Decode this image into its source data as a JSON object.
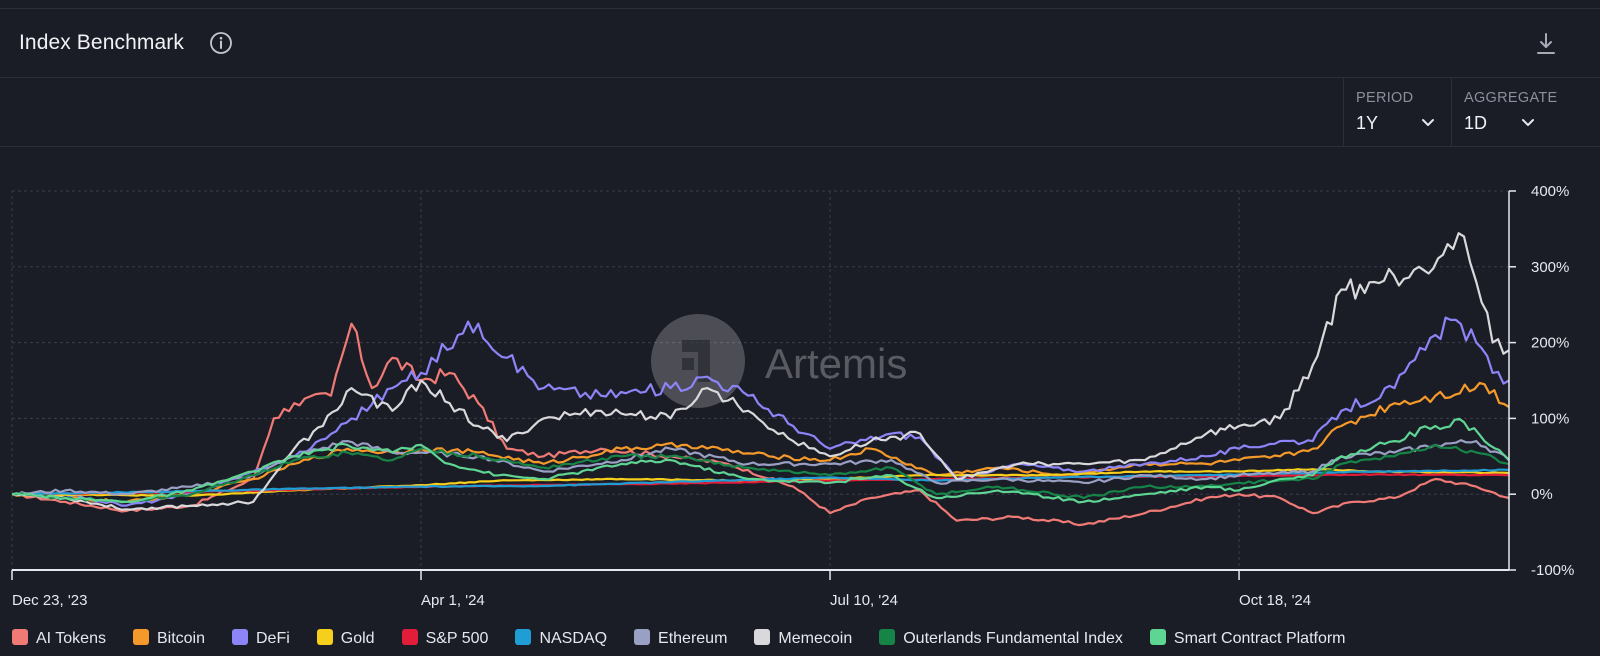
{
  "header": {
    "title": "Index Benchmark",
    "info_icon": "info-icon",
    "download_icon": "download-icon"
  },
  "controls": {
    "period": {
      "label": "PERIOD",
      "value": "1Y"
    },
    "aggregate": {
      "label": "AGGREGATE",
      "value": "1D"
    }
  },
  "watermark": {
    "text": "Artemis"
  },
  "chart_data": {
    "type": "line",
    "title": "",
    "xlabel": "",
    "ylabel": "",
    "x_range": [
      "2023-12-23",
      "2024-12-23"
    ],
    "x_ticks": [
      {
        "date": "2023-12-23",
        "label": "Dec 23, '23"
      },
      {
        "date": "2024-04-01",
        "label": "Apr 1, '24"
      },
      {
        "date": "2024-07-10",
        "label": "Jul 10, '24"
      },
      {
        "date": "2024-10-18",
        "label": "Oct 18, '24"
      }
    ],
    "ylim": [
      -100,
      400
    ],
    "y_ticks": [
      {
        "value": 400,
        "label": "400%"
      },
      {
        "value": 300,
        "label": "300%"
      },
      {
        "value": 200,
        "label": "200%"
      },
      {
        "value": 100,
        "label": "100%"
      },
      {
        "value": 0,
        "label": "0%"
      },
      {
        "value": -100,
        "label": "-100%"
      }
    ],
    "grid": true,
    "legend_position": "bottom",
    "series": [
      {
        "name": "AI Tokens",
        "color": "#f07b76",
        "points": [
          [
            "2023-12-23",
            0
          ],
          [
            "2024-01-05",
            -10
          ],
          [
            "2024-01-20",
            -22
          ],
          [
            "2024-02-05",
            -15
          ],
          [
            "2024-02-20",
            20
          ],
          [
            "2024-02-25",
            100
          ],
          [
            "2024-03-01",
            120
          ],
          [
            "2024-03-10",
            130
          ],
          [
            "2024-03-15",
            225
          ],
          [
            "2024-03-20",
            140
          ],
          [
            "2024-03-25",
            180
          ],
          [
            "2024-04-01",
            150
          ],
          [
            "2024-04-08",
            160
          ],
          [
            "2024-04-15",
            120
          ],
          [
            "2024-04-22",
            60
          ],
          [
            "2024-05-01",
            50
          ],
          [
            "2024-05-15",
            60
          ],
          [
            "2024-06-01",
            50
          ],
          [
            "2024-06-15",
            40
          ],
          [
            "2024-07-01",
            10
          ],
          [
            "2024-07-10",
            -25
          ],
          [
            "2024-07-20",
            -5
          ],
          [
            "2024-08-01",
            5
          ],
          [
            "2024-08-10",
            -35
          ],
          [
            "2024-08-25",
            -30
          ],
          [
            "2024-09-10",
            -40
          ],
          [
            "2024-09-25",
            -25
          ],
          [
            "2024-10-10",
            -5
          ],
          [
            "2024-10-18",
            0
          ],
          [
            "2024-10-28",
            -5
          ],
          [
            "2024-11-05",
            -25
          ],
          [
            "2024-11-15",
            -10
          ],
          [
            "2024-11-25",
            -5
          ],
          [
            "2024-12-05",
            20
          ],
          [
            "2024-12-15",
            10
          ],
          [
            "2024-12-23",
            -5
          ]
        ]
      },
      {
        "name": "Bitcoin",
        "color": "#f59a2a",
        "points": [
          [
            "2023-12-23",
            0
          ],
          [
            "2024-01-05",
            -5
          ],
          [
            "2024-01-20",
            -10
          ],
          [
            "2024-02-05",
            0
          ],
          [
            "2024-02-20",
            20
          ],
          [
            "2024-03-01",
            40
          ],
          [
            "2024-03-14",
            60
          ],
          [
            "2024-03-25",
            55
          ],
          [
            "2024-04-01",
            60
          ],
          [
            "2024-04-15",
            55
          ],
          [
            "2024-05-01",
            40
          ],
          [
            "2024-05-20",
            60
          ],
          [
            "2024-06-05",
            65
          ],
          [
            "2024-06-25",
            50
          ],
          [
            "2024-07-10",
            45
          ],
          [
            "2024-07-20",
            60
          ],
          [
            "2024-08-05",
            25
          ],
          [
            "2024-08-20",
            35
          ],
          [
            "2024-09-05",
            25
          ],
          [
            "2024-09-25",
            40
          ],
          [
            "2024-10-10",
            40
          ],
          [
            "2024-10-18",
            45
          ],
          [
            "2024-10-28",
            50
          ],
          [
            "2024-11-05",
            60
          ],
          [
            "2024-11-12",
            90
          ],
          [
            "2024-11-25",
            120
          ],
          [
            "2024-12-05",
            130
          ],
          [
            "2024-12-17",
            145
          ],
          [
            "2024-12-23",
            115
          ]
        ]
      },
      {
        "name": "DeFi",
        "color": "#8c84f7",
        "points": [
          [
            "2023-12-23",
            0
          ],
          [
            "2024-01-05",
            0
          ],
          [
            "2024-01-20",
            -15
          ],
          [
            "2024-02-05",
            0
          ],
          [
            "2024-02-20",
            30
          ],
          [
            "2024-03-05",
            60
          ],
          [
            "2024-03-15",
            100
          ],
          [
            "2024-03-25",
            140
          ],
          [
            "2024-04-01",
            160
          ],
          [
            "2024-04-10",
            210
          ],
          [
            "2024-04-15",
            225
          ],
          [
            "2024-04-22",
            180
          ],
          [
            "2024-05-01",
            140
          ],
          [
            "2024-05-15",
            130
          ],
          [
            "2024-06-01",
            140
          ],
          [
            "2024-06-10",
            155
          ],
          [
            "2024-06-20",
            130
          ],
          [
            "2024-07-01",
            90
          ],
          [
            "2024-07-10",
            60
          ],
          [
            "2024-07-25",
            80
          ],
          [
            "2024-08-01",
            75
          ],
          [
            "2024-08-10",
            20
          ],
          [
            "2024-08-25",
            40
          ],
          [
            "2024-09-10",
            30
          ],
          [
            "2024-09-25",
            40
          ],
          [
            "2024-10-10",
            50
          ],
          [
            "2024-10-18",
            60
          ],
          [
            "2024-10-28",
            70
          ],
          [
            "2024-11-05",
            70
          ],
          [
            "2024-11-12",
            110
          ],
          [
            "2024-11-25",
            140
          ],
          [
            "2024-12-05",
            210
          ],
          [
            "2024-12-10",
            230
          ],
          [
            "2024-12-15",
            200
          ],
          [
            "2024-12-19",
            160
          ],
          [
            "2024-12-23",
            150
          ]
        ]
      },
      {
        "name": "Gold",
        "color": "#f5cf1c",
        "points": [
          [
            "2023-12-23",
            0
          ],
          [
            "2024-02-05",
            -2
          ],
          [
            "2024-03-01",
            5
          ],
          [
            "2024-04-01",
            12
          ],
          [
            "2024-04-20",
            18
          ],
          [
            "2024-05-20",
            20
          ],
          [
            "2024-06-20",
            18
          ],
          [
            "2024-07-10",
            20
          ],
          [
            "2024-08-01",
            25
          ],
          [
            "2024-09-01",
            25
          ],
          [
            "2024-09-25",
            30
          ],
          [
            "2024-10-18",
            30
          ],
          [
            "2024-11-05",
            33
          ],
          [
            "2024-11-20",
            30
          ],
          [
            "2024-12-23",
            28
          ]
        ]
      },
      {
        "name": "S&P 500",
        "color": "#e11d3a",
        "points": [
          [
            "2023-12-23",
            0
          ],
          [
            "2024-02-05",
            3
          ],
          [
            "2024-03-01",
            6
          ],
          [
            "2024-04-01",
            10
          ],
          [
            "2024-05-01",
            12
          ],
          [
            "2024-06-01",
            14
          ],
          [
            "2024-07-10",
            18
          ],
          [
            "2024-08-05",
            20
          ],
          [
            "2024-09-01",
            22
          ],
          [
            "2024-10-18",
            24
          ],
          [
            "2024-11-20",
            26
          ],
          [
            "2024-12-23",
            25
          ]
        ]
      },
      {
        "name": "NASDAQ",
        "color": "#1f9ed6",
        "points": [
          [
            "2023-12-23",
            0
          ],
          [
            "2024-02-05",
            4
          ],
          [
            "2024-03-01",
            7
          ],
          [
            "2024-04-01",
            10
          ],
          [
            "2024-05-01",
            11
          ],
          [
            "2024-06-01",
            16
          ],
          [
            "2024-07-10",
            22
          ],
          [
            "2024-08-05",
            18
          ],
          [
            "2024-09-01",
            22
          ],
          [
            "2024-10-18",
            26
          ],
          [
            "2024-11-20",
            30
          ],
          [
            "2024-12-23",
            32
          ]
        ]
      },
      {
        "name": "Ethereum",
        "color": "#9aa0c4",
        "points": [
          [
            "2023-12-23",
            0
          ],
          [
            "2024-01-05",
            5
          ],
          [
            "2024-01-20",
            0
          ],
          [
            "2024-02-05",
            10
          ],
          [
            "2024-02-20",
            25
          ],
          [
            "2024-03-01",
            50
          ],
          [
            "2024-03-14",
            70
          ],
          [
            "2024-03-25",
            55
          ],
          [
            "2024-04-01",
            55
          ],
          [
            "2024-04-15",
            50
          ],
          [
            "2024-05-01",
            30
          ],
          [
            "2024-05-20",
            45
          ],
          [
            "2024-06-01",
            60
          ],
          [
            "2024-06-20",
            40
          ],
          [
            "2024-07-10",
            40
          ],
          [
            "2024-07-25",
            45
          ],
          [
            "2024-08-05",
            15
          ],
          [
            "2024-08-20",
            20
          ],
          [
            "2024-09-10",
            15
          ],
          [
            "2024-09-25",
            25
          ],
          [
            "2024-10-10",
            20
          ],
          [
            "2024-10-18",
            25
          ],
          [
            "2024-11-05",
            30
          ],
          [
            "2024-11-12",
            50
          ],
          [
            "2024-11-25",
            55
          ],
          [
            "2024-12-05",
            65
          ],
          [
            "2024-12-15",
            70
          ],
          [
            "2024-12-23",
            45
          ]
        ]
      },
      {
        "name": "Memecoin",
        "color": "#d9d9dc",
        "points": [
          [
            "2023-12-23",
            0
          ],
          [
            "2024-01-05",
            -5
          ],
          [
            "2024-01-20",
            -20
          ],
          [
            "2024-02-05",
            -15
          ],
          [
            "2024-02-20",
            -10
          ],
          [
            "2024-03-01",
            60
          ],
          [
            "2024-03-08",
            90
          ],
          [
            "2024-03-15",
            140
          ],
          [
            "2024-03-25",
            110
          ],
          [
            "2024-04-01",
            150
          ],
          [
            "2024-04-08",
            120
          ],
          [
            "2024-04-15",
            90
          ],
          [
            "2024-04-22",
            70
          ],
          [
            "2024-05-01",
            100
          ],
          [
            "2024-05-15",
            110
          ],
          [
            "2024-06-01",
            100
          ],
          [
            "2024-06-10",
            140
          ],
          [
            "2024-06-20",
            110
          ],
          [
            "2024-07-01",
            70
          ],
          [
            "2024-07-10",
            50
          ],
          [
            "2024-07-20",
            70
          ],
          [
            "2024-08-01",
            80
          ],
          [
            "2024-08-10",
            20
          ],
          [
            "2024-08-25",
            40
          ],
          [
            "2024-09-10",
            40
          ],
          [
            "2024-09-25",
            45
          ],
          [
            "2024-10-10",
            80
          ],
          [
            "2024-10-18",
            90
          ],
          [
            "2024-10-28",
            100
          ],
          [
            "2024-11-05",
            170
          ],
          [
            "2024-11-12",
            270
          ],
          [
            "2024-11-20",
            280
          ],
          [
            "2024-12-01",
            300
          ],
          [
            "2024-12-08",
            330
          ],
          [
            "2024-12-12",
            340
          ],
          [
            "2024-12-15",
            280
          ],
          [
            "2024-12-19",
            200
          ],
          [
            "2024-12-23",
            190
          ]
        ]
      },
      {
        "name": "Outerlands Fundamental Index",
        "color": "#168447",
        "points": [
          [
            "2023-12-23",
            0
          ],
          [
            "2024-01-05",
            -5
          ],
          [
            "2024-01-20",
            -10
          ],
          [
            "2024-02-05",
            0
          ],
          [
            "2024-02-20",
            25
          ],
          [
            "2024-03-01",
            45
          ],
          [
            "2024-03-14",
            55
          ],
          [
            "2024-03-25",
            45
          ],
          [
            "2024-04-01",
            60
          ],
          [
            "2024-04-15",
            50
          ],
          [
            "2024-05-01",
            35
          ],
          [
            "2024-05-20",
            50
          ],
          [
            "2024-06-01",
            50
          ],
          [
            "2024-06-20",
            35
          ],
          [
            "2024-07-10",
            25
          ],
          [
            "2024-07-25",
            35
          ],
          [
            "2024-08-05",
            0
          ],
          [
            "2024-08-20",
            10
          ],
          [
            "2024-09-10",
            -5
          ],
          [
            "2024-09-25",
            10
          ],
          [
            "2024-10-10",
            10
          ],
          [
            "2024-10-18",
            15
          ],
          [
            "2024-11-05",
            20
          ],
          [
            "2024-11-12",
            40
          ],
          [
            "2024-11-25",
            50
          ],
          [
            "2024-12-05",
            65
          ],
          [
            "2024-12-15",
            55
          ],
          [
            "2024-12-23",
            40
          ]
        ]
      },
      {
        "name": "Smart Contract Platform",
        "color": "#5fd594",
        "points": [
          [
            "2023-12-23",
            0
          ],
          [
            "2024-01-05",
            -5
          ],
          [
            "2024-01-20",
            -10
          ],
          [
            "2024-02-05",
            5
          ],
          [
            "2024-02-20",
            30
          ],
          [
            "2024-03-01",
            50
          ],
          [
            "2024-03-14",
            65
          ],
          [
            "2024-03-25",
            55
          ],
          [
            "2024-04-01",
            65
          ],
          [
            "2024-04-08",
            40
          ],
          [
            "2024-04-20",
            25
          ],
          [
            "2024-05-01",
            20
          ],
          [
            "2024-05-20",
            40
          ],
          [
            "2024-06-01",
            45
          ],
          [
            "2024-06-20",
            20
          ],
          [
            "2024-07-10",
            15
          ],
          [
            "2024-07-25",
            25
          ],
          [
            "2024-08-05",
            -5
          ],
          [
            "2024-08-20",
            5
          ],
          [
            "2024-09-10",
            -10
          ],
          [
            "2024-09-25",
            0
          ],
          [
            "2024-10-10",
            10
          ],
          [
            "2024-10-18",
            5
          ],
          [
            "2024-10-28",
            20
          ],
          [
            "2024-11-05",
            25
          ],
          [
            "2024-11-12",
            50
          ],
          [
            "2024-11-25",
            70
          ],
          [
            "2024-12-05",
            90
          ],
          [
            "2024-12-12",
            95
          ],
          [
            "2024-12-17",
            70
          ],
          [
            "2024-12-23",
            45
          ]
        ]
      }
    ]
  }
}
